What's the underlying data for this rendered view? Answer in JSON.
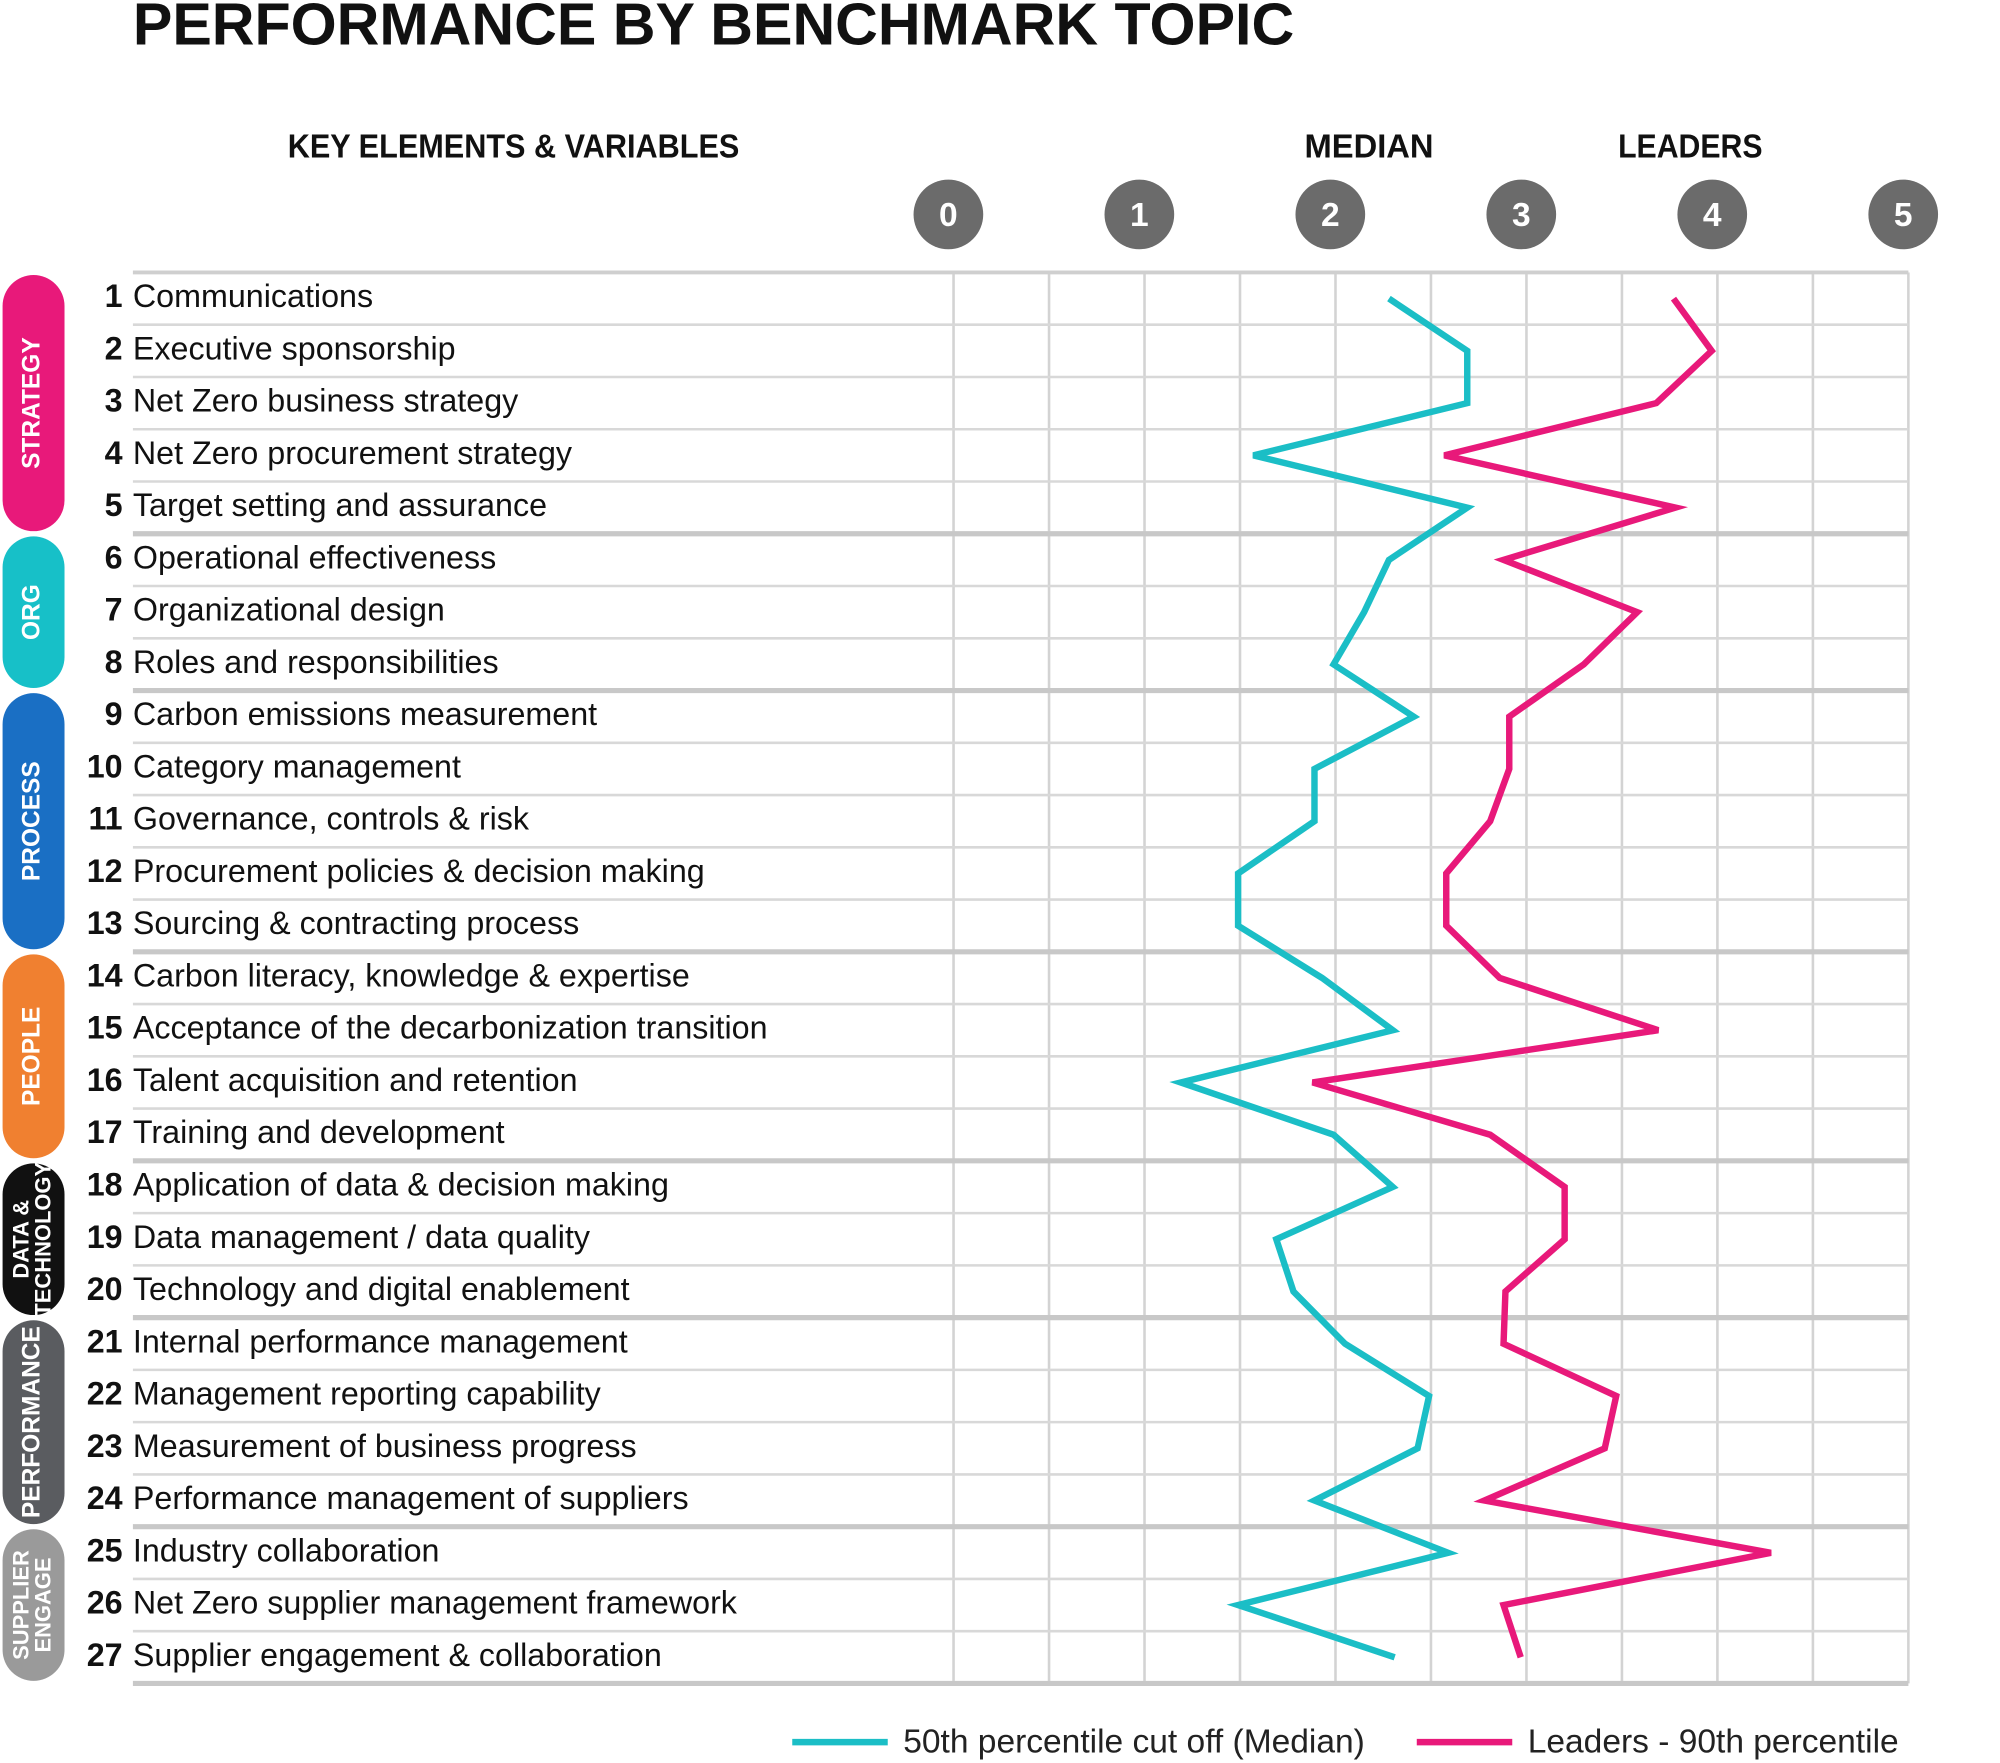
{
  "chart_data": {
    "type": "line",
    "title": "PERFORMANCE BY BENCHMARK TOPIC",
    "column_headers": [
      "KEY ELEMENTS & VARIABLES",
      "MEDIAN",
      "LEADERS"
    ],
    "groups": [
      {
        "label": [
          "STRATEGY"
        ],
        "color": "#e8197a",
        "numbers": [
          1,
          2,
          3,
          4,
          5
        ],
        "categories": [
          "Communications",
          "Executive sponsorship",
          "Net Zero business strategy",
          "Net Zero procurement strategy",
          "Target setting and assurance"
        ]
      },
      {
        "label": [
          "ORG"
        ],
        "color": "#17c0c8",
        "numbers": [
          6,
          7,
          8
        ],
        "categories": [
          "Operational effectiveness",
          "Organizational design",
          "Roles and responsibilities"
        ]
      },
      {
        "label": [
          "PROCESS"
        ],
        "color": "#1a6fc4",
        "numbers": [
          9,
          10,
          11,
          12,
          13
        ],
        "categories": [
          "Carbon emissions measurement",
          "Category management",
          "Governance, controls & risk",
          "Procurement policies & decision making",
          "Sourcing & contracting process"
        ]
      },
      {
        "label": [
          "PEOPLE"
        ],
        "color": "#f08030",
        "numbers": [
          14,
          15,
          16,
          17
        ],
        "categories": [
          "Carbon literacy, knowledge & expertise",
          "Acceptance of the decarbonization transition",
          "Talent acquisition and retention",
          "Training and development"
        ]
      },
      {
        "label": [
          "DATA &",
          "TECHNOLOGY"
        ],
        "color": "#111111",
        "numbers": [
          18,
          19,
          20
        ],
        "categories": [
          "Application of data & decision making",
          "Data management / data quality",
          "Technology and digital enablement"
        ]
      },
      {
        "label": [
          "PERFORMANCE"
        ],
        "color": "#5a5c60",
        "numbers": [
          21,
          22,
          23,
          24
        ],
        "categories": [
          "Internal performance management",
          "Management reporting capability",
          "Measurement of business progress",
          "Performance management of suppliers"
        ]
      },
      {
        "label": [
          "SUPPLIER",
          "ENGAGE"
        ],
        "color": "#9a9a9a",
        "numbers": [
          25,
          26,
          27
        ],
        "categories": [
          "Industry collaboration",
          "Net Zero supplier management framework",
          "Supplier engagement & collaboration"
        ]
      }
    ],
    "series": [
      {
        "name": "50th percentile cut off (Median)",
        "color": "#1bbec6",
        "values": [
          2.28,
          2.69,
          2.69,
          1.57,
          2.69,
          2.28,
          2.15,
          1.99,
          2.41,
          1.89,
          1.89,
          1.49,
          1.49,
          1.93,
          2.3,
          1.19,
          1.99,
          2.3,
          1.69,
          1.78,
          2.05,
          2.49,
          2.43,
          1.89,
          2.59,
          1.49,
          2.31
        ]
      },
      {
        "name": "Leaders - 90th percentile",
        "color": "#e8197a",
        "values": [
          3.77,
          3.97,
          3.68,
          2.57,
          3.78,
          2.88,
          3.58,
          3.3,
          2.91,
          2.91,
          2.81,
          2.58,
          2.58,
          2.86,
          3.69,
          1.88,
          2.81,
          3.2,
          3.2,
          2.89,
          2.88,
          3.47,
          3.41,
          2.78,
          4.28,
          2.88,
          2.97
        ]
      }
    ],
    "xlim": [
      0,
      5
    ],
    "xticks": [
      0,
      1,
      2,
      3,
      4,
      5
    ],
    "grid": true
  }
}
